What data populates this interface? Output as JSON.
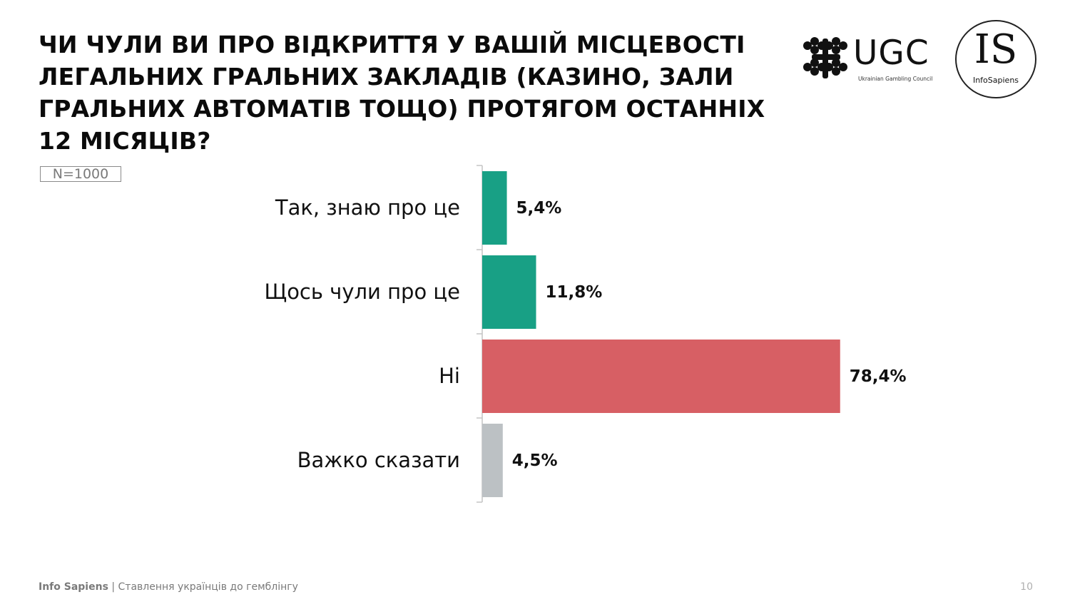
{
  "title": "ЧИ ЧУЛИ ВИ ПРО ВІДКРИТТЯ У ВАШІЙ МІСЦЕВОСТІ ЛЕГАЛЬНИХ ГРАЛЬНИХ ЗАКЛАДІВ (КАЗИНО, ЗАЛИ ГРАЛЬНИХ АВТОМАТІВ ТОЩО) ПРОТЯГОМ ОСТАННІХ 12 МІСЯЦІВ?",
  "sample_size": "N=1000",
  "logos": {
    "ugc": {
      "name": "UGC",
      "subtitle": "Ukrainian Gambling Council"
    },
    "infosapiens": {
      "letters": "IS",
      "name": "InfoSapiens"
    }
  },
  "footer": {
    "brand": "Info Sapiens",
    "separator": " | ",
    "text": "Ставлення українців до гемблінгу"
  },
  "page_number": "10",
  "chart_data": {
    "type": "bar",
    "orientation": "horizontal",
    "categories": [
      "Так, знаю про це",
      "Щось чули про це",
      "Ні",
      "Важко сказати"
    ],
    "values": [
      5.4,
      11.8,
      78.4,
      4.5
    ],
    "value_labels": [
      "5,4%",
      "11,8%",
      "78,4%",
      "4,5%"
    ],
    "colors": [
      "#18a085",
      "#18a085",
      "#d75f64",
      "#bcc1c4"
    ],
    "title": "",
    "xlabel": "",
    "ylabel": "",
    "xlim": [
      0,
      100
    ],
    "grid": false,
    "legend": "none"
  }
}
